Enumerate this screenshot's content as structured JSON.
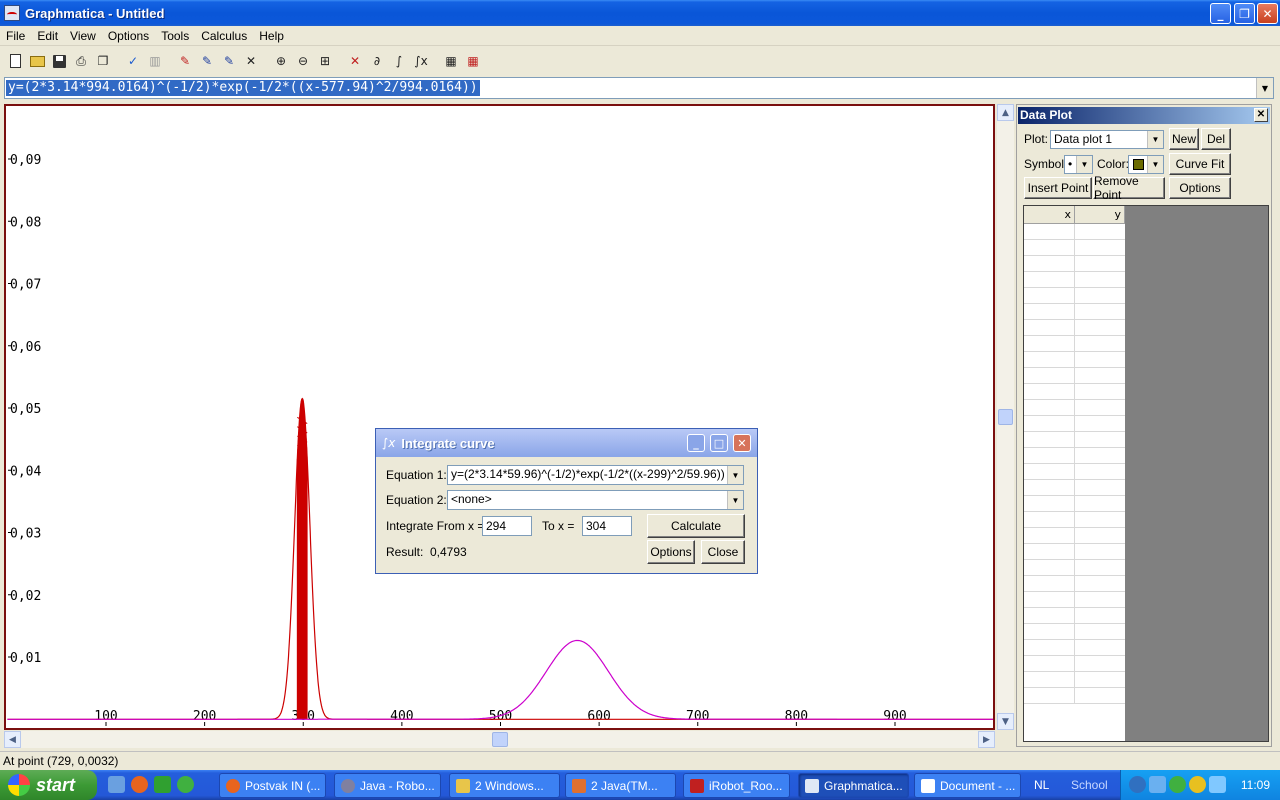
{
  "window": {
    "title": "Graphmatica - Untitled",
    "minimize": "_",
    "restore": "❐",
    "close": "✕"
  },
  "menu": [
    "File",
    "Edit",
    "View",
    "Options",
    "Tools",
    "Calculus",
    "Help"
  ],
  "equation_bar": {
    "value": "y=(2*3.14*994.0164)^(-1/2)*exp(-1/2*((x-577.94)^2/994.0164))"
  },
  "graph": {
    "y_ticks": [
      "0,09",
      "0,08",
      "0,07",
      "0,06",
      "0,05",
      "0,04",
      "0,03",
      "0,02",
      "0,01"
    ],
    "x_ticks": [
      "100",
      "200",
      "300",
      "400",
      "500",
      "600",
      "700",
      "800",
      "900"
    ]
  },
  "chart_data": {
    "type": "line",
    "xlim": [
      0,
      1000
    ],
    "ylim": [
      0,
      0.1
    ],
    "series": [
      {
        "mu": 299,
        "variance": 59.96,
        "color": "#cc0000"
      },
      {
        "mu": 577.94,
        "variance": 994.0164,
        "color": "#cc00cc"
      }
    ],
    "shaded_integral": {
      "from": 294,
      "to": 304,
      "color": "#cc0000"
    }
  },
  "data_plot": {
    "title": "Data Plot",
    "plot_label": "Plot:",
    "plot_value": "Data plot 1",
    "new_label": "New",
    "del_label": "Del",
    "symbol_label": "Symbol:",
    "symbol_value": "•",
    "color_label": "Color:",
    "color_value": "#6b6b00",
    "curve_fit_label": "Curve Fit",
    "insert_point_label": "Insert Point",
    "remove_point_label": "Remove Point",
    "options_label": "Options",
    "col_x": "x",
    "col_y": "y"
  },
  "integrate_dialog": {
    "title": "Integrate curve",
    "eq1_label": "Equation 1:",
    "eq1_value": "y=(2*3.14*59.96)^(-1/2)*exp(-1/2*((x-299)^2/59.96))",
    "eq2_label": "Equation 2:",
    "eq2_value": "<none>",
    "from_label": "Integrate From x =",
    "from_value": "294",
    "to_label": "To x =",
    "to_value": "304",
    "calculate_label": "Calculate",
    "result_label": "Result:",
    "result_value": "0,4793",
    "options_label": "Options",
    "close_label": "Close"
  },
  "status": {
    "text": "At point (729, 0,0032)"
  },
  "taskbar": {
    "start_label": "start",
    "tasks": [
      {
        "label": "Postvak IN (...",
        "color": "#e8641e"
      },
      {
        "label": "Java - Robo...",
        "color": "#8080a0"
      },
      {
        "label": "2 Windows...",
        "color": "#e8c54a"
      },
      {
        "label": "2 Java(TM...",
        "color": "#e07030"
      },
      {
        "label": "iRobot_Roo...",
        "color": "#c02020"
      },
      {
        "label": "Graphmatica...",
        "color": "#dfe7f5"
      },
      {
        "label": "Document - ...",
        "color": "#ffffff"
      }
    ],
    "lang": "NL",
    "toolbar_label": "School",
    "clock": "11:09"
  }
}
